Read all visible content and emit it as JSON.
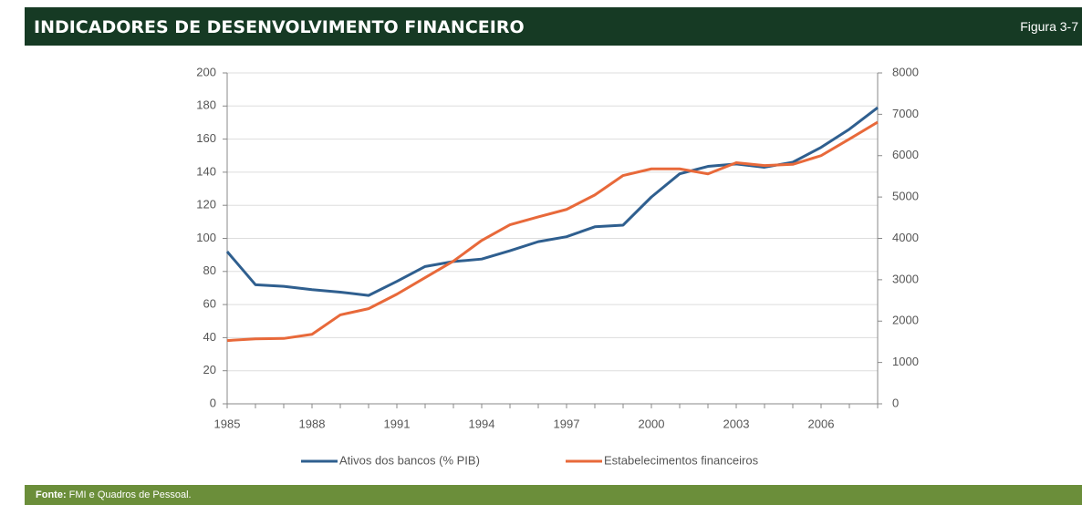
{
  "header": {
    "title": "INDICADORES DE DESENVOLVIMENTO FINANCEIRO",
    "figure": "Figura 3-7"
  },
  "footer": {
    "source_label": "Fonte:",
    "source_text": "FMI e Quadros de Pessoal."
  },
  "chart_data": {
    "type": "line",
    "x": [
      1985,
      1986,
      1987,
      1988,
      1989,
      1990,
      1991,
      1992,
      1993,
      1994,
      1995,
      1996,
      1997,
      1998,
      1999,
      2000,
      2001,
      2002,
      2003,
      2004,
      2005,
      2006,
      2007,
      2008
    ],
    "xlim": [
      1985,
      2008
    ],
    "xticks": [
      1985,
      1988,
      1991,
      1994,
      1997,
      2000,
      2003,
      2006
    ],
    "ylim": [
      0,
      200
    ],
    "yticks": [
      0,
      20,
      40,
      60,
      80,
      100,
      120,
      140,
      160,
      180,
      200
    ],
    "y2lim": [
      0,
      8000
    ],
    "y2ticks": [
      0,
      1000,
      2000,
      3000,
      4000,
      5000,
      6000,
      7000,
      8000
    ],
    "grid": true,
    "legend": "bottom",
    "series": [
      {
        "name": "Ativos dos bancos (% PIB)",
        "color": "#2f5f8f",
        "values": [
          92,
          72,
          71,
          69,
          67.5,
          65.5,
          74,
          83,
          86,
          87.5,
          92.5,
          98,
          101,
          107,
          108,
          125,
          139,
          143.5,
          145,
          143,
          146,
          155,
          166,
          179
        ]
      },
      {
        "name": "Estabelecimentos financeiros",
        "color": "#e8693a",
        "axis": "y2",
        "values": [
          1530,
          1570,
          1580,
          1680,
          2150,
          2300,
          2650,
          3050,
          3450,
          3950,
          4330,
          4520,
          4700,
          5050,
          5520,
          5680,
          5680,
          5560,
          5830,
          5760,
          5790,
          6000,
          6400,
          6810
        ]
      }
    ]
  }
}
